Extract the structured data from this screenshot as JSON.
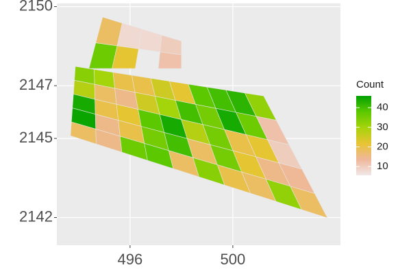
{
  "chart_data": {
    "type": "choropleth",
    "legend_title": "Count",
    "xlim": [
      493.15,
      504.19
    ],
    "ylim": [
      2140.95,
      2150.12
    ],
    "xticks": [
      496,
      500
    ],
    "yticks": [
      2142,
      2145,
      2147,
      2150
    ],
    "grid": true,
    "color_scale": {
      "limits": [
        5.5,
        46
      ],
      "colors": [
        "#f0e8e8",
        "#efb79b",
        "#e8c434",
        "#a6d40a",
        "#5cc800",
        "#00a000"
      ],
      "ticks": [
        10,
        20,
        30,
        40
      ]
    },
    "blocks": [
      {
        "corners": {
          "x": [
            493.87,
            501.2,
            503.68,
            493.68
          ],
          "y": [
            2147.73,
            2146.61,
            2141.99,
            2145.1
          ]
        },
        "counts": [
          [
            33,
            30,
            20,
            20,
            25,
            22,
            38,
            40,
            42,
            32
          ],
          [
            28,
            18,
            15,
            25,
            30,
            40,
            35,
            44,
            36,
            12
          ],
          [
            44,
            20,
            22,
            38,
            44,
            28,
            35,
            20,
            22,
            10
          ],
          [
            45,
            15,
            20,
            35,
            40,
            18,
            35,
            22,
            15,
            14
          ],
          [
            18,
            15,
            36,
            38,
            18,
            33,
            20,
            18,
            32,
            18
          ]
        ]
      },
      {
        "corners": {
          "x": [
            494.93,
            498.0,
            498.0,
            494.4
          ],
          "y": [
            2149.6,
            2148.69,
            2147.65,
            2147.65
          ]
        },
        "counts": [
          [
            18,
            8,
            8,
            10
          ],
          [
            36,
            22,
            null,
            12
          ]
        ]
      }
    ]
  }
}
